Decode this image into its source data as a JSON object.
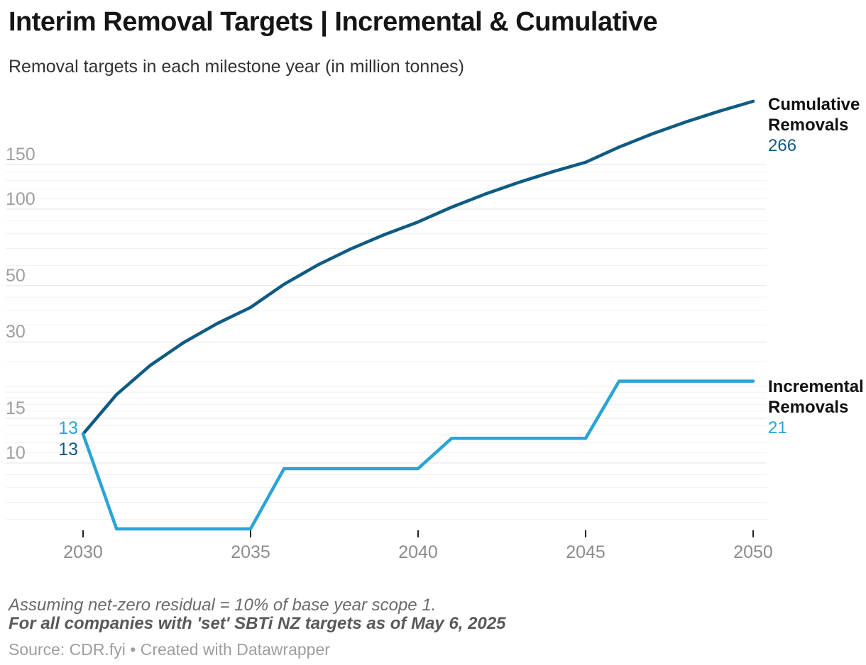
{
  "title": "Interim Removal Targets | Incremental & Cumulative",
  "subtitle": "Removal targets in each milestone year (in million tonnes)",
  "legend": {
    "cumulative": {
      "label": "Cumulative Removals",
      "value": "266"
    },
    "incremental": {
      "label": "Incremental Removals",
      "value": "21"
    }
  },
  "annotations": {
    "incremental_start": "13",
    "cumulative_start": "13"
  },
  "footer": {
    "note_line1": "Assuming net-zero residual = 10% of base year scope 1.",
    "note_line2": "For all companies with 'set' SBTi NZ targets as of May 6, 2025",
    "source": "Source: CDR.fyi • Created with Datawrapper"
  },
  "colors": {
    "cumulative": "#0f5b82",
    "incremental": "#2aa4d6",
    "grid_major": "#e3e3e3",
    "grid_minor": "#f1f1f1",
    "y_axis_label": "#9e9e9e",
    "x_axis_label": "#8c8c8c",
    "tick_mark": "#222222"
  },
  "chart_data": {
    "type": "line",
    "title": "Interim Removal Targets | Incremental & Cumulative",
    "subtitle": "Removal targets in each milestone year (in million tonnes)",
    "xlabel": "",
    "ylabel": "million tonnes",
    "y_scale": "log",
    "ylim": [
      5.5,
      266
    ],
    "grid": true,
    "legend_position": "right",
    "x_ticks": [
      2030,
      2035,
      2040,
      2045,
      2050
    ],
    "y_ticks": [
      10,
      15,
      30,
      50,
      100,
      150
    ],
    "y_minor_gridlines": [
      6,
      7,
      8,
      9,
      11,
      12,
      13,
      14,
      16,
      17,
      18,
      19,
      20,
      25,
      35,
      40,
      45,
      60,
      70,
      80,
      90,
      110,
      120,
      130,
      140
    ],
    "x": [
      2030,
      2031,
      2032,
      2033,
      2034,
      2035,
      2036,
      2037,
      2038,
      2039,
      2040,
      2041,
      2042,
      2043,
      2044,
      2045,
      2046,
      2047,
      2048,
      2049,
      2050
    ],
    "series": [
      {
        "name": "Cumulative Removals",
        "color": "#0f5b82",
        "start_label": "13",
        "end_label": "266",
        "milestones": {
          "2030": 13,
          "2035": 41,
          "2040": 89,
          "2045": 153,
          "2050": 266
        },
        "values": [
          13,
          18.6,
          24.2,
          29.8,
          35.4,
          41,
          50.6,
          60.2,
          69.8,
          79.4,
          89,
          101.8,
          114.6,
          127.4,
          140.2,
          153,
          175.6,
          198.2,
          220.8,
          243.4,
          266
        ]
      },
      {
        "name": "Incremental Removals",
        "color": "#2aa4d6",
        "start_label": "13",
        "end_label": "21",
        "values": [
          13,
          5.5,
          5.5,
          5.5,
          5.5,
          5.5,
          9.5,
          9.5,
          9.5,
          9.5,
          9.5,
          12.5,
          12.5,
          12.5,
          12.5,
          12.5,
          21,
          21,
          21,
          21,
          21
        ]
      }
    ]
  }
}
